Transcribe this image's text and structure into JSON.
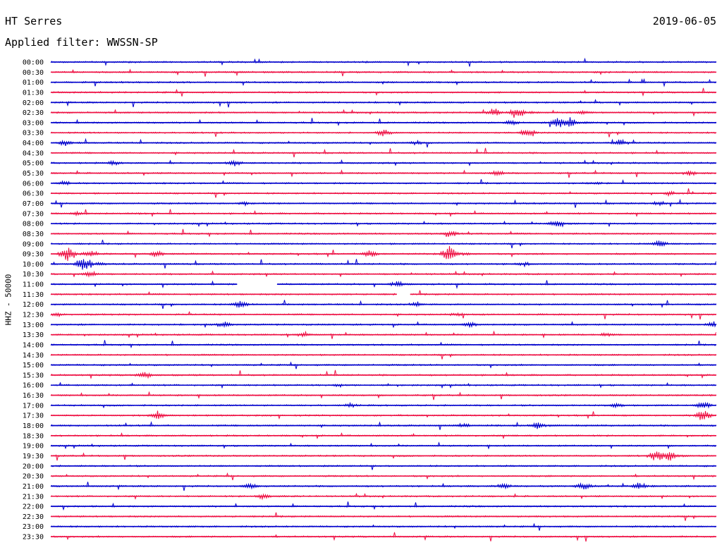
{
  "header": {
    "station": "HT Serres",
    "date": "2019-06-05",
    "filter": "Applied filter: WWSSN-SP"
  },
  "chart_data": {
    "type": "line",
    "title": "HT Serres",
    "ylabel": "HHZ - 50000",
    "colors": {
      "even": "#0000cc",
      "odd": "#ee1144"
    },
    "traces": [
      {
        "label": "00:00",
        "events": []
      },
      {
        "label": "00:30",
        "events": []
      },
      {
        "label": "01:00",
        "events": []
      },
      {
        "label": "01:30",
        "events": []
      },
      {
        "label": "02:00",
        "events": []
      },
      {
        "label": "02:30",
        "events": [
          {
            "t": 0.665,
            "a": 7
          },
          {
            "t": 0.7,
            "a": 10
          },
          {
            "t": 0.8,
            "a": 4
          }
        ]
      },
      {
        "label": "03:00",
        "events": [
          {
            "t": 0.692,
            "a": 5
          },
          {
            "t": 0.765,
            "a": 13
          },
          {
            "t": 0.78,
            "a": 9
          }
        ]
      },
      {
        "label": "03:30",
        "events": [
          {
            "t": 0.5,
            "a": 6
          },
          {
            "t": 0.718,
            "a": 8
          }
        ]
      },
      {
        "label": "04:00",
        "events": [
          {
            "t": 0.02,
            "a": 5
          },
          {
            "t": 0.55,
            "a": 4
          },
          {
            "t": 0.855,
            "a": 7
          }
        ]
      },
      {
        "label": "04:30",
        "events": []
      },
      {
        "label": "05:00",
        "events": [
          {
            "t": 0.095,
            "a": 4
          },
          {
            "t": 0.275,
            "a": 6
          }
        ]
      },
      {
        "label": "05:30",
        "events": [
          {
            "t": 0.67,
            "a": 5
          },
          {
            "t": 0.96,
            "a": 5
          }
        ]
      },
      {
        "label": "06:00",
        "events": [
          {
            "t": 0.02,
            "a": 4
          },
          {
            "t": 0.82,
            "a": 3
          }
        ]
      },
      {
        "label": "06:30",
        "events": [
          {
            "t": 0.93,
            "a": 4
          }
        ]
      },
      {
        "label": "07:00",
        "events": [
          {
            "t": 0.29,
            "a": 4
          },
          {
            "t": 0.915,
            "a": 5
          }
        ]
      },
      {
        "label": "07:30",
        "events": [
          {
            "t": 0.04,
            "a": 4
          }
        ]
      },
      {
        "label": "08:00",
        "events": [
          {
            "t": 0.76,
            "a": 9
          }
        ]
      },
      {
        "label": "08:30",
        "events": [
          {
            "t": 0.6,
            "a": 6
          }
        ]
      },
      {
        "label": "09:00",
        "events": [
          {
            "t": 0.915,
            "a": 6
          }
        ]
      },
      {
        "label": "09:30",
        "events": [
          {
            "t": 0.025,
            "a": 14
          },
          {
            "t": 0.06,
            "a": 6
          },
          {
            "t": 0.16,
            "a": 6
          },
          {
            "t": 0.48,
            "a": 6
          },
          {
            "t": 0.6,
            "a": 14
          }
        ]
      },
      {
        "label": "10:00",
        "events": [
          {
            "t": 0.05,
            "a": 14
          },
          {
            "t": 0.71,
            "a": 4
          }
        ]
      },
      {
        "label": "10:30",
        "events": [
          {
            "t": 0.06,
            "a": 5
          }
        ]
      },
      {
        "label": "11:00",
        "events": [
          {
            "t": 0.52,
            "a": 6
          }
        ],
        "gap": [
          0.28,
          0.34
        ]
      },
      {
        "label": "11:30",
        "events": [],
        "gap": [
          0.52,
          0.54
        ]
      },
      {
        "label": "12:00",
        "events": [
          {
            "t": 0.285,
            "a": 7
          },
          {
            "t": 0.55,
            "a": 5
          }
        ]
      },
      {
        "label": "12:30",
        "events": [
          {
            "t": 0.01,
            "a": 4
          },
          {
            "t": 0.61,
            "a": 4
          }
        ]
      },
      {
        "label": "13:00",
        "events": [
          {
            "t": 0.26,
            "a": 6
          },
          {
            "t": 0.63,
            "a": 5
          },
          {
            "t": 0.995,
            "a": 6
          }
        ]
      },
      {
        "label": "13:30",
        "events": [
          {
            "t": 0.38,
            "a": 5
          },
          {
            "t": 0.835,
            "a": 4
          }
        ]
      },
      {
        "label": "14:00",
        "events": []
      },
      {
        "label": "14:30",
        "events": []
      },
      {
        "label": "15:00",
        "events": []
      },
      {
        "label": "15:30",
        "events": [
          {
            "t": 0.14,
            "a": 7
          }
        ]
      },
      {
        "label": "16:00",
        "events": [
          {
            "t": 0.43,
            "a": 3
          }
        ]
      },
      {
        "label": "16:30",
        "events": []
      },
      {
        "label": "17:00",
        "events": [
          {
            "t": 0.45,
            "a": 4
          },
          {
            "t": 0.85,
            "a": 5
          },
          {
            "t": 0.98,
            "a": 7
          }
        ]
      },
      {
        "label": "17:30",
        "events": [
          {
            "t": 0.16,
            "a": 8
          },
          {
            "t": 0.98,
            "a": 9
          }
        ]
      },
      {
        "label": "18:00",
        "events": [
          {
            "t": 0.62,
            "a": 4
          },
          {
            "t": 0.73,
            "a": 7
          }
        ]
      },
      {
        "label": "18:30",
        "events": []
      },
      {
        "label": "19:00",
        "events": []
      },
      {
        "label": "19:30",
        "events": [
          {
            "t": 0.91,
            "a": 10
          },
          {
            "t": 0.93,
            "a": 8
          }
        ]
      },
      {
        "label": "20:00",
        "events": []
      },
      {
        "label": "20:30",
        "events": []
      },
      {
        "label": "21:00",
        "events": [
          {
            "t": 0.3,
            "a": 6
          },
          {
            "t": 0.68,
            "a": 6
          },
          {
            "t": 0.8,
            "a": 7
          },
          {
            "t": 0.885,
            "a": 7
          }
        ]
      },
      {
        "label": "21:30",
        "events": [
          {
            "t": 0.32,
            "a": 6
          }
        ]
      },
      {
        "label": "22:00",
        "events": []
      },
      {
        "label": "22:30",
        "events": []
      },
      {
        "label": "23:00",
        "events": []
      },
      {
        "label": "23:30",
        "events": []
      }
    ]
  }
}
